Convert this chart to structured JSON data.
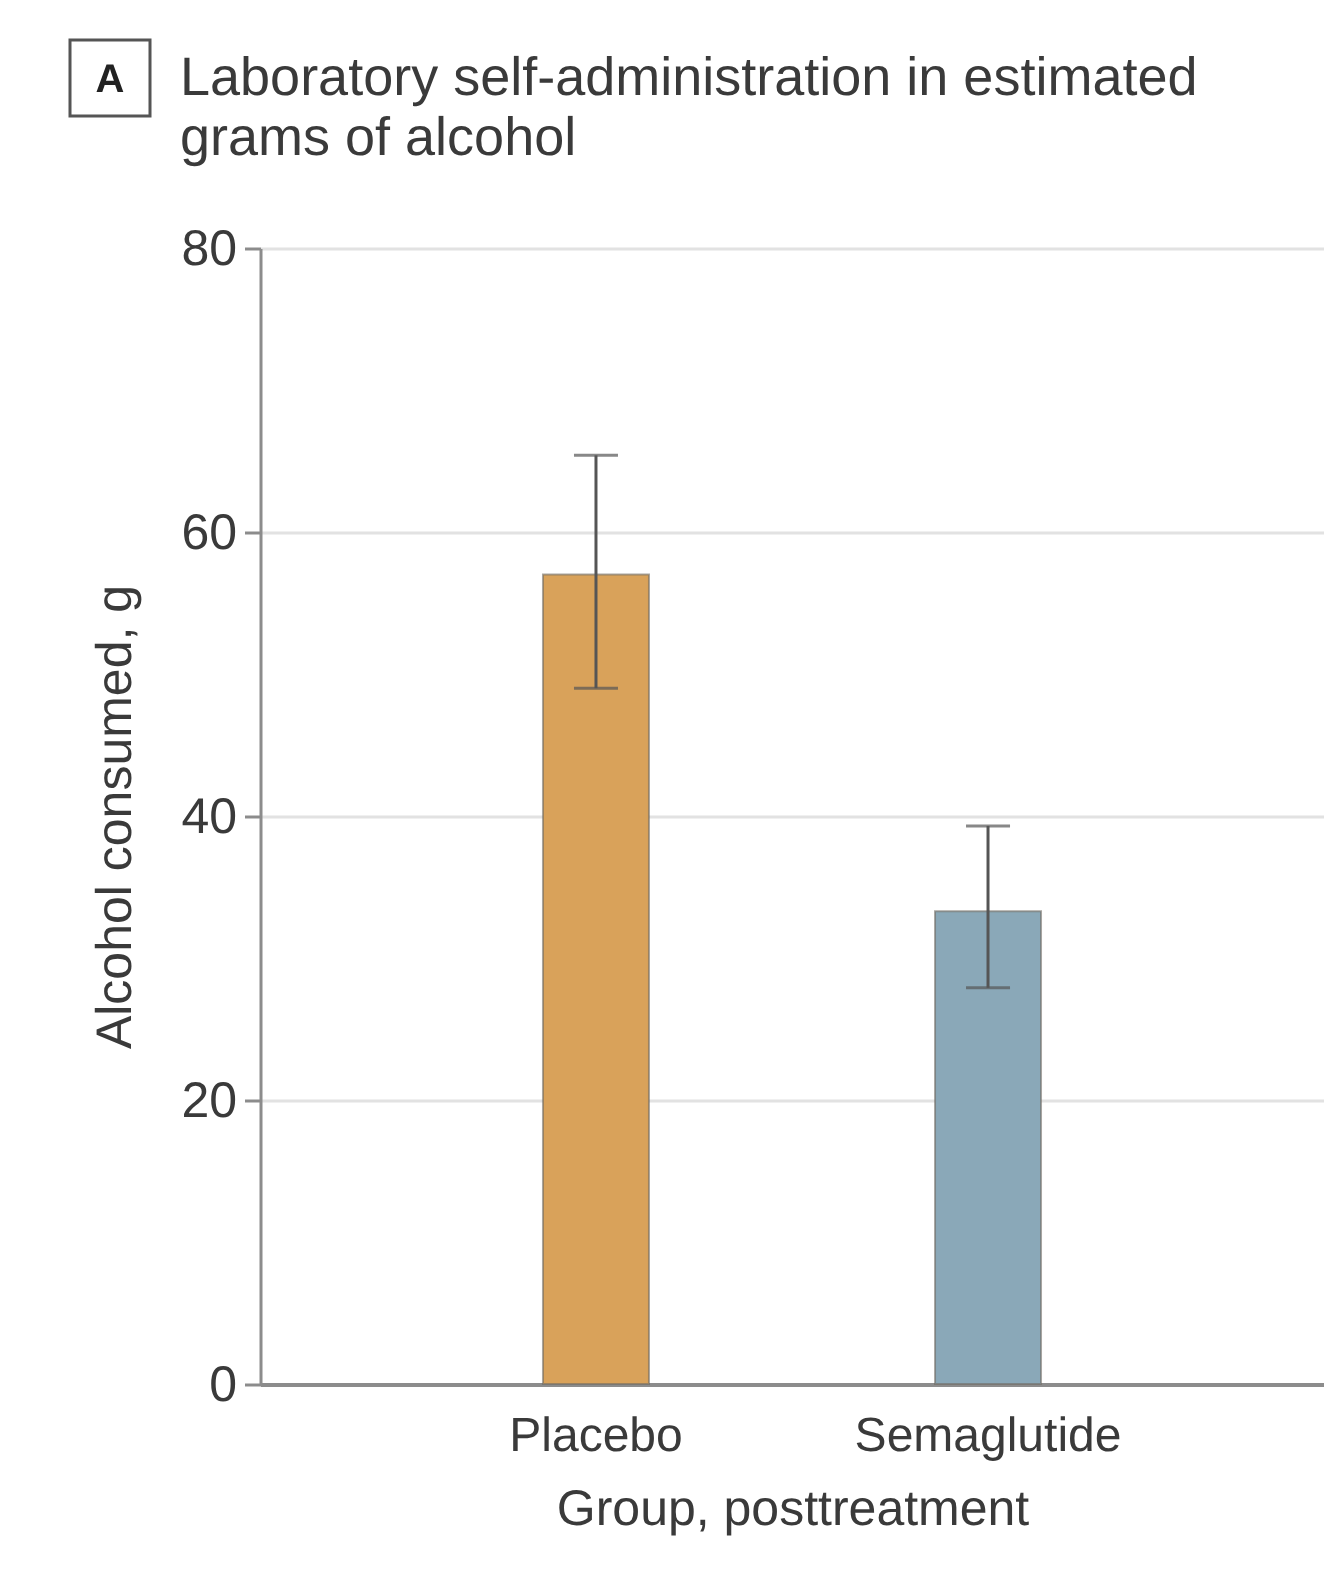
{
  "chart_data": {
    "type": "bar",
    "title": "Laboratory self-administration in estimated grams of alcohol",
    "xlabel": "Group, posttreatment",
    "ylabel": "Alcohol consumed, g",
    "categories": [
      "Placebo",
      "Semaglutide"
    ],
    "values": [
      57.0,
      33.3
    ],
    "colors": [
      "#d9a25a",
      "#8aa8b8"
    ],
    "errors": [
      [
        49.0,
        65.4
      ],
      [
        27.9,
        39.3
      ]
    ],
    "ylim": [
      0,
      80
    ],
    "yticks": [
      0,
      20,
      40,
      60,
      80
    ],
    "grid": "y",
    "annotations": [
      "A"
    ]
  }
}
